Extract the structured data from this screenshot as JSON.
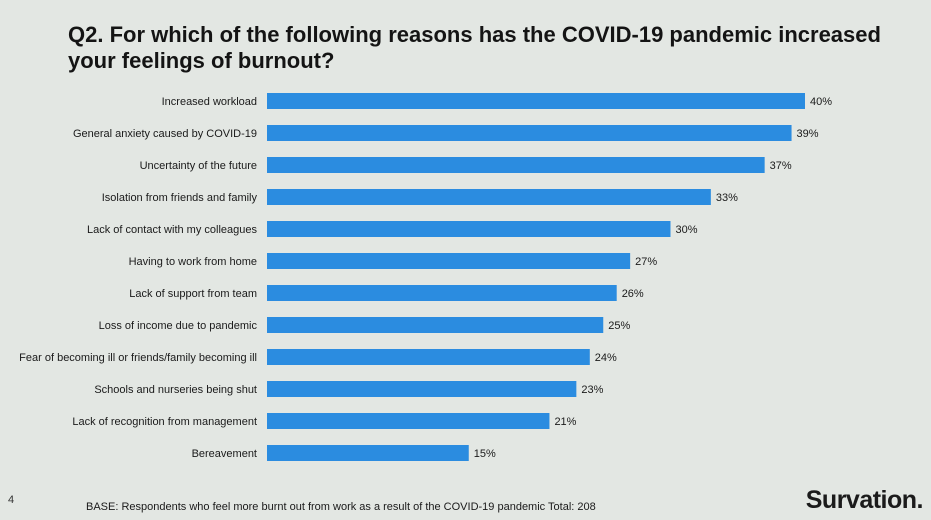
{
  "chart_data": {
    "type": "bar",
    "orientation": "horizontal",
    "title": "Q2. For which of the following reasons has the COVID-19 pandemic increased your feelings of burnout?",
    "categories": [
      "Increased workload",
      "General anxiety caused by COVID-19",
      "Uncertainty of the future",
      "Isolation from friends and family",
      "Lack of contact with my colleagues",
      "Having to work from home",
      "Lack of support from team",
      "Loss of income due to pandemic",
      "Fear of becoming ill or friends/family becoming ill",
      "Schools and nurseries being shut",
      "Lack of recognition from management",
      "Bereavement"
    ],
    "values": [
      40,
      39,
      37,
      33,
      30,
      27,
      26,
      25,
      24,
      23,
      21,
      15
    ],
    "value_suffix": "%",
    "xlim": [
      0,
      40
    ],
    "bar_color": "#2b8ce0",
    "grid": false,
    "xlabel": "",
    "ylabel": ""
  },
  "footer": {
    "page_number": "4",
    "base_note": "BASE: Respondents who feel more burnt out from work as a result of the COVID-19 pandemic Total: 208",
    "brand": "Survation."
  }
}
